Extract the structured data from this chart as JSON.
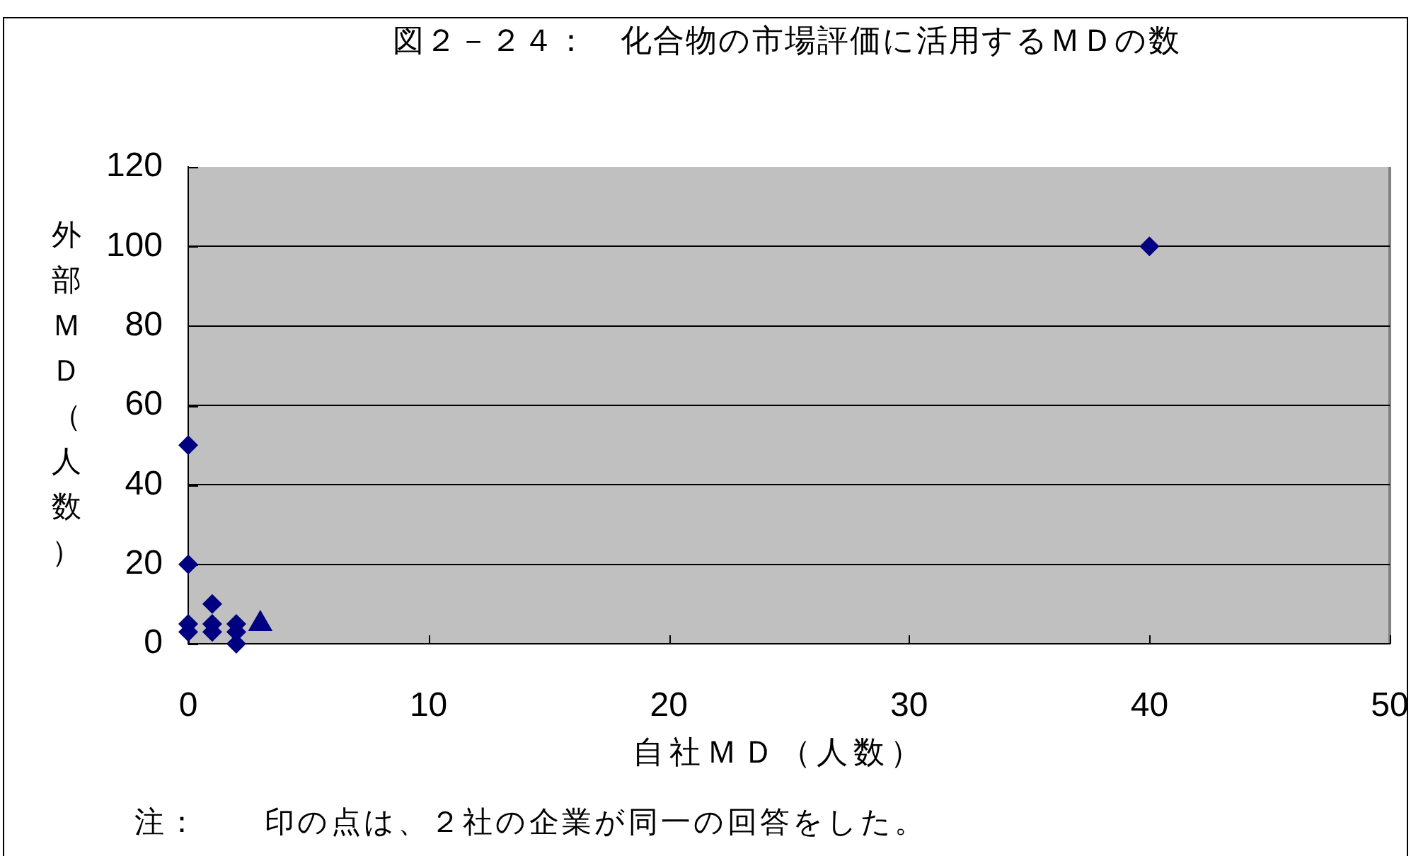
{
  "chart_data": {
    "type": "scatter",
    "title": "図２－２４：　化合物の市場評価に活用するＭＤの数",
    "xlabel": "自社ＭＤ（人数）",
    "ylabel": "外部ＭＤ（人数）",
    "annotations": [
      "注：　　印の点は、２社の企業が同一の回答をした。"
    ],
    "series": [
      {
        "color": "#000080",
        "marker": "diamond",
        "x": [
          0,
          0,
          0,
          0,
          1,
          1,
          1,
          2,
          2,
          2,
          40
        ],
        "values": [
          50,
          20,
          5,
          3,
          10,
          5,
          3,
          5,
          3,
          0,
          100
        ]
      },
      {
        "color": "#000080",
        "marker": "triangle",
        "x": [
          3
        ],
        "values": [
          5
        ]
      }
    ],
    "xlim": [
      0,
      50
    ],
    "xticks": [
      0,
      10,
      20,
      30,
      40,
      50
    ],
    "ylim": [
      0,
      120
    ],
    "yticks": [
      0,
      20,
      40,
      60,
      80,
      100,
      120
    ],
    "grid": "y"
  }
}
